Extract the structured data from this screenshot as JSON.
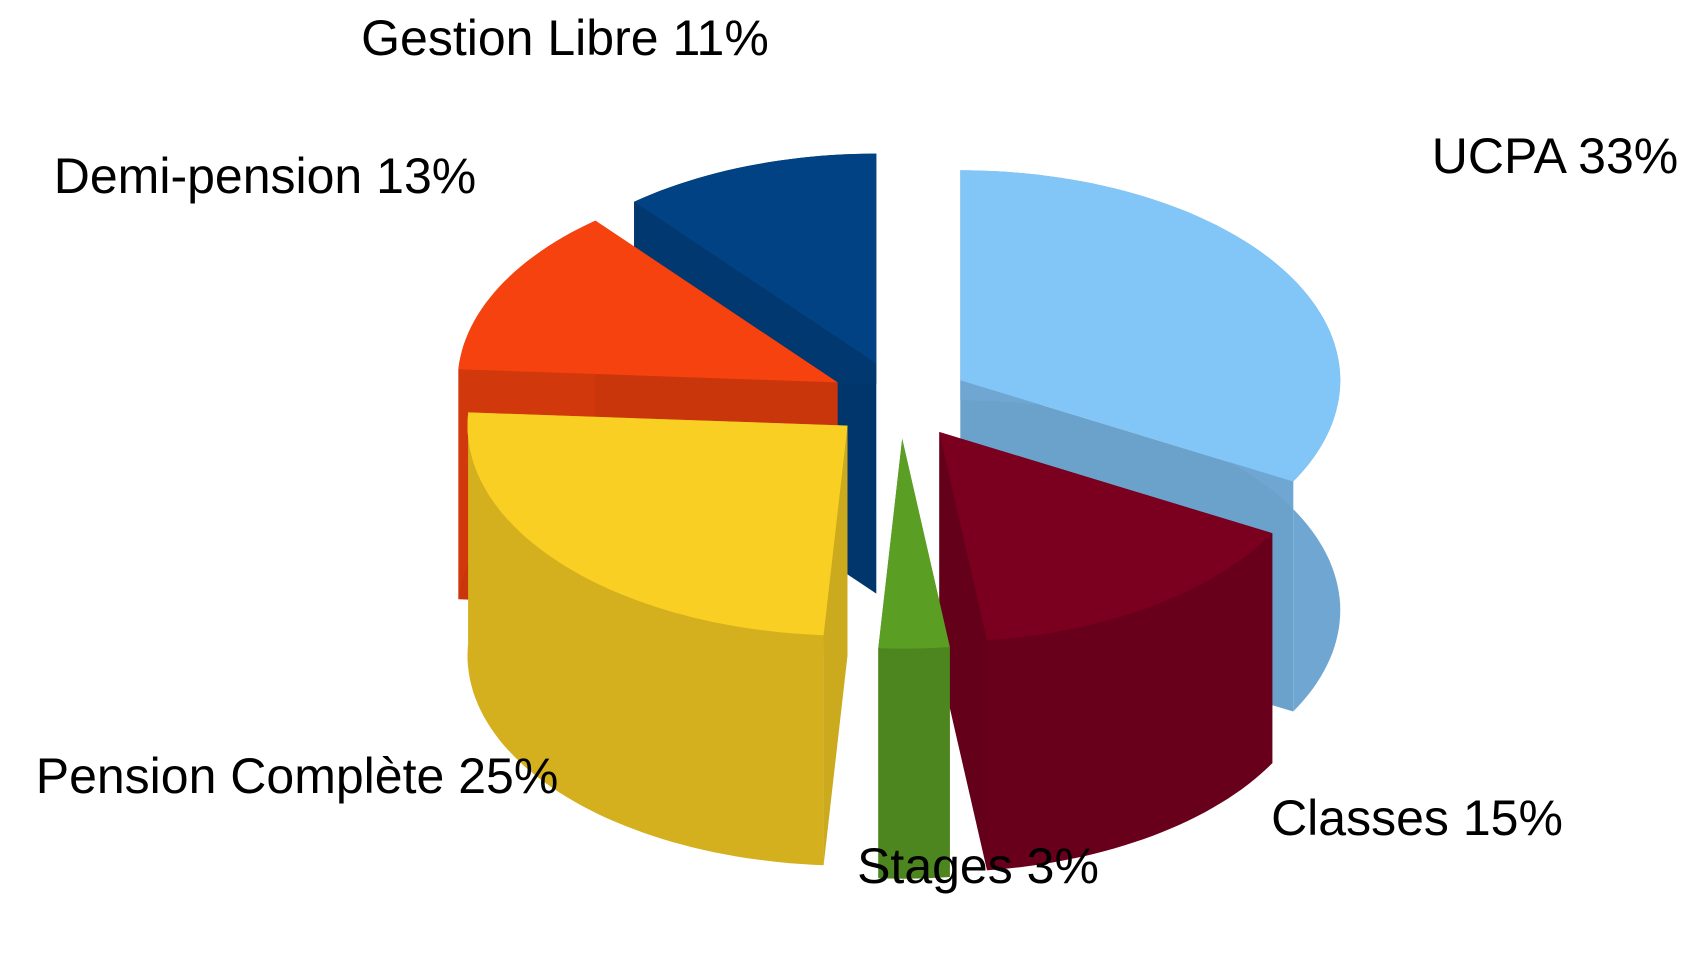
{
  "chart_data": {
    "type": "pie3d",
    "categories": [
      "UCPA",
      "Classes",
      "Stages",
      "Pension Complète",
      "Demi-pension",
      "Gestion Libre"
    ],
    "values": [
      33,
      15,
      3,
      25,
      13,
      11
    ],
    "value_labels": [
      "33%",
      "15%",
      "3%",
      "25%",
      "13%",
      "11%"
    ],
    "colors": [
      "#82c5f7",
      "#7b0020",
      "#5a9e23",
      "#f9cf24",
      "#f6420e",
      "#004283"
    ]
  }
}
